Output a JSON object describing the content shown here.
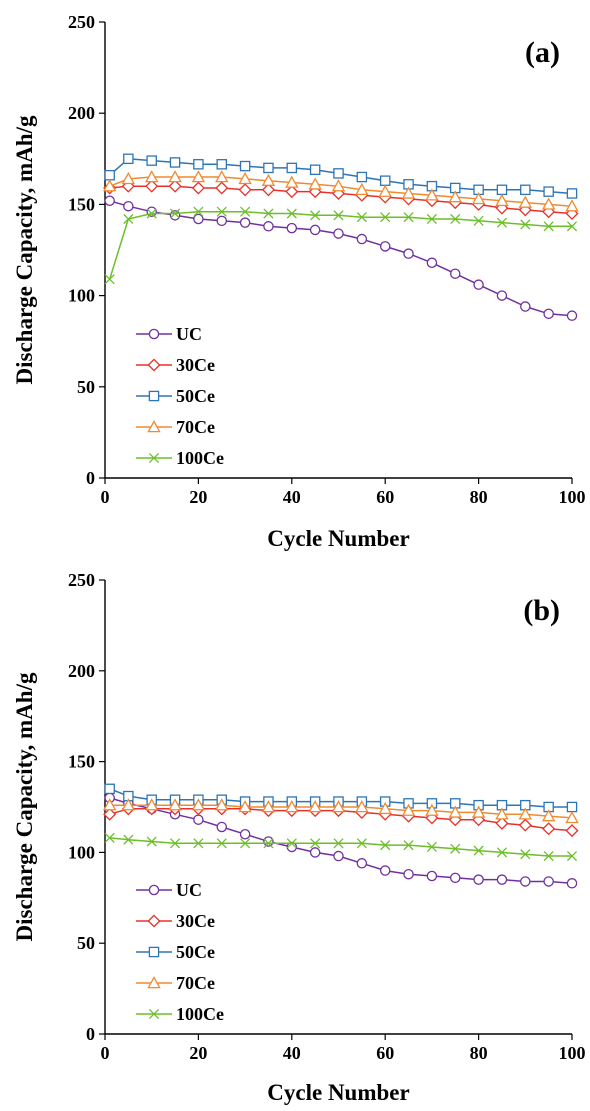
{
  "chart_data": [
    {
      "type": "line",
      "panel_label": "(a)",
      "xlabel": "Cycle Number",
      "ylabel": "Discharge Capacity, mAh/g",
      "xlim": [
        0,
        100
      ],
      "ylim": [
        0,
        250
      ],
      "x_ticks": [
        "0",
        "20",
        "40",
        "60",
        "80",
        "100"
      ],
      "y_ticks": [
        "0",
        "50",
        "100",
        "150",
        "200",
        "250"
      ],
      "grid": false,
      "legend_position": "bottom-left",
      "x": [
        1,
        5,
        10,
        15,
        20,
        25,
        30,
        35,
        40,
        45,
        50,
        55,
        60,
        65,
        70,
        75,
        80,
        85,
        90,
        95,
        100
      ],
      "series": [
        {
          "name": "UC",
          "color": "#7030a0",
          "marker": "circle",
          "values": [
            152,
            149,
            146,
            144,
            142,
            141,
            140,
            138,
            137,
            136,
            134,
            131,
            127,
            123,
            118,
            112,
            106,
            100,
            94,
            90,
            89
          ]
        },
        {
          "name": "30Ce",
          "color": "#e8312a",
          "marker": "diamond",
          "values": [
            159,
            160,
            160,
            160,
            159,
            159,
            158,
            158,
            157,
            157,
            156,
            155,
            154,
            153,
            152,
            151,
            150,
            148,
            147,
            146,
            145
          ]
        },
        {
          "name": "50Ce",
          "color": "#2e75b6",
          "marker": "square",
          "values": [
            166,
            175,
            174,
            173,
            172,
            172,
            171,
            170,
            170,
            169,
            167,
            165,
            163,
            161,
            160,
            159,
            158,
            158,
            158,
            157,
            156
          ]
        },
        {
          "name": "70Ce",
          "color": "#f08a30",
          "marker": "triangle",
          "values": [
            160,
            164,
            165,
            165,
            165,
            165,
            164,
            163,
            162,
            161,
            160,
            158,
            157,
            156,
            155,
            154,
            153,
            152,
            151,
            150,
            149
          ]
        },
        {
          "name": "100Ce",
          "color": "#6cbf2a",
          "marker": "x",
          "values": [
            109,
            142,
            145,
            145,
            146,
            146,
            146,
            145,
            145,
            144,
            144,
            143,
            143,
            143,
            142,
            142,
            141,
            140,
            139,
            138,
            138
          ]
        }
      ]
    },
    {
      "type": "line",
      "panel_label": "(b)",
      "xlabel": "Cycle Number",
      "ylabel": "Discharge Capacity, mAh/g",
      "xlim": [
        0,
        100
      ],
      "ylim": [
        0,
        250
      ],
      "x_ticks": [
        "0",
        "20",
        "40",
        "60",
        "80",
        "100"
      ],
      "y_ticks": [
        "0",
        "50",
        "100",
        "150",
        "200",
        "250"
      ],
      "grid": false,
      "legend_position": "bottom-left",
      "x": [
        1,
        5,
        10,
        15,
        20,
        25,
        30,
        35,
        40,
        45,
        50,
        55,
        60,
        65,
        70,
        75,
        80,
        85,
        90,
        95,
        100
      ],
      "series": [
        {
          "name": "UC",
          "color": "#7030a0",
          "marker": "circle",
          "values": [
            130,
            127,
            124,
            121,
            118,
            114,
            110,
            106,
            103,
            100,
            98,
            94,
            90,
            88,
            87,
            86,
            85,
            85,
            84,
            84,
            83
          ]
        },
        {
          "name": "30Ce",
          "color": "#e8312a",
          "marker": "diamond",
          "values": [
            121,
            124,
            124,
            124,
            124,
            124,
            124,
            123,
            123,
            123,
            123,
            122,
            121,
            120,
            119,
            118,
            118,
            116,
            115,
            113,
            112
          ]
        },
        {
          "name": "50Ce",
          "color": "#2e75b6",
          "marker": "square",
          "values": [
            135,
            131,
            129,
            129,
            129,
            129,
            128,
            128,
            128,
            128,
            128,
            128,
            128,
            127,
            127,
            127,
            126,
            126,
            126,
            125,
            125
          ]
        },
        {
          "name": "70Ce",
          "color": "#f08a30",
          "marker": "triangle",
          "values": [
            126,
            126,
            126,
            126,
            126,
            126,
            125,
            125,
            125,
            125,
            125,
            125,
            124,
            123,
            123,
            122,
            122,
            121,
            121,
            120,
            119
          ]
        },
        {
          "name": "100Ce",
          "color": "#6cbf2a",
          "marker": "x",
          "values": [
            108,
            107,
            106,
            105,
            105,
            105,
            105,
            105,
            105,
            105,
            105,
            105,
            104,
            104,
            103,
            102,
            101,
            100,
            99,
            98,
            98
          ]
        }
      ]
    }
  ]
}
